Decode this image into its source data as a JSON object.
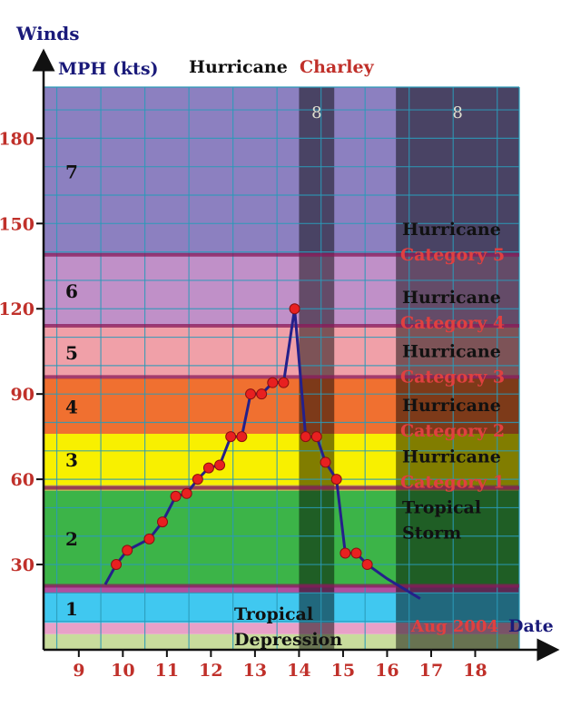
{
  "chart_data": {
    "type": "line",
    "title_part1": "Hurricane",
    "title_part2": "Charley",
    "ylabel_line1": "Winds",
    "ylabel_line2": "MPH (kts)",
    "xlabel": "Date",
    "date_note": "Aug 2004",
    "ylim": [
      0,
      198
    ],
    "xlim": [
      8.2,
      19.0
    ],
    "y_ticks": [
      30,
      60,
      90,
      120,
      150,
      180
    ],
    "x_ticks": [
      9,
      10,
      11,
      12,
      13,
      14,
      15,
      16,
      17,
      18
    ],
    "grid": true,
    "bands": [
      {
        "from": 0,
        "to": 5.5,
        "color": "#c8dc9c",
        "level": ""
      },
      {
        "from": 5.5,
        "to": 9.5,
        "color": "#e8a0c8",
        "level": ""
      },
      {
        "from": 9.5,
        "to": 20,
        "color": "#40c8f0",
        "level": "1"
      },
      {
        "from": 20,
        "to": 22.5,
        "color": "#b050a0",
        "level": ""
      },
      {
        "from": 22.5,
        "to": 56,
        "color": "#3cb448",
        "level": "2"
      },
      {
        "from": 56,
        "to": 58,
        "color": "#c8b040",
        "level": ""
      },
      {
        "from": 58,
        "to": 76,
        "color": "#f8f000",
        "level": "3"
      },
      {
        "from": 76,
        "to": 95.5,
        "color": "#f07030",
        "level": "4"
      },
      {
        "from": 95.5,
        "to": 114,
        "color": "#f0a0a8",
        "level": "5"
      },
      {
        "from": 114,
        "to": 139,
        "color": "#c090c8",
        "level": "6"
      },
      {
        "from": 139,
        "to": 198,
        "color": "#8c80c0",
        "level": "7"
      }
    ],
    "separators": [
      22.5,
      57,
      96,
      114,
      139
    ],
    "shaded_periods": [
      {
        "from": 14.0,
        "to": 14.8,
        "label": "8"
      },
      {
        "from": 16.2,
        "to": 19.0,
        "label": "8"
      }
    ],
    "category_labels": [
      {
        "y": 146,
        "line1": "Hurricane",
        "line2": "Category 5"
      },
      {
        "y": 122,
        "line1": "Hurricane",
        "line2": "Category 4"
      },
      {
        "y": 103,
        "line1": "Hurricane",
        "line2": "Category 3"
      },
      {
        "y": 84,
        "line1": "Hurricane",
        "line2": "Category 2"
      },
      {
        "y": 66,
        "line1": "Hurricane",
        "line2": "Category 1"
      },
      {
        "y": 48,
        "line1": "Tropical",
        "line2": "Storm"
      },
      {
        "y": 10.5,
        "line1": "Tropical",
        "line2": "Depression"
      }
    ],
    "series": [
      {
        "x": [
          9.6,
          9.85,
          10.1,
          10.6,
          10.9,
          11.2,
          11.45,
          11.7,
          11.95,
          12.2,
          12.45,
          12.7,
          12.9,
          13.15,
          13.4,
          13.65,
          13.9,
          14.15,
          14.4,
          14.6,
          14.85,
          15.05,
          15.3,
          15.55,
          16.0,
          16.75
        ],
        "y": [
          23,
          30,
          35,
          39,
          45,
          54,
          55,
          60,
          64,
          65,
          75,
          75,
          90,
          90,
          94,
          94,
          120,
          75,
          75,
          66,
          60,
          34,
          34,
          30,
          25,
          18
        ],
        "markers": [
          false,
          true,
          true,
          true,
          true,
          true,
          true,
          true,
          true,
          true,
          true,
          true,
          true,
          true,
          true,
          true,
          true,
          true,
          true,
          true,
          true,
          true,
          true,
          true,
          false,
          false
        ]
      }
    ]
  }
}
